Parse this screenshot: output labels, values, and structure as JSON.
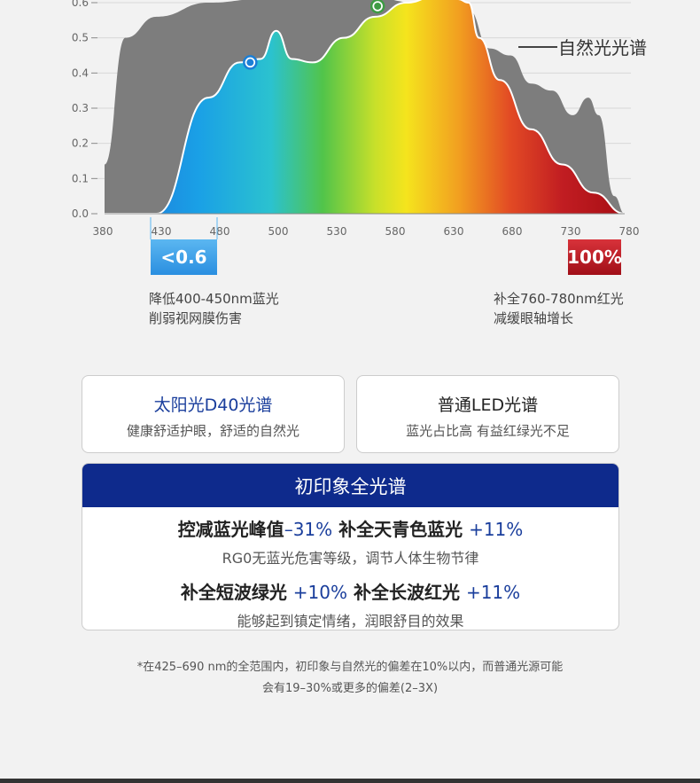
{
  "chart_data": {
    "type": "area",
    "x_ticks": [
      380,
      430,
      480,
      500,
      530,
      580,
      630,
      680,
      730,
      780
    ],
    "y_ticks": [
      "0.0",
      "0.1",
      "0.2",
      "0.3",
      "0.4",
      "0.5",
      "0.6"
    ],
    "ylim": [
      0,
      0.6
    ],
    "series": [
      {
        "name": "自然光光谱",
        "color": "#7d7d7d",
        "points": [
          [
            0,
            0.14
          ],
          [
            0.04,
            0.5
          ],
          [
            0.1,
            0.56
          ],
          [
            0.2,
            0.6
          ],
          [
            0.3,
            0.61
          ],
          [
            0.4,
            0.62
          ],
          [
            0.5,
            0.62
          ],
          [
            0.6,
            0.6
          ],
          [
            0.67,
            0.62
          ],
          [
            0.7,
            0.58
          ],
          [
            0.74,
            0.47
          ],
          [
            0.78,
            0.45
          ],
          [
            0.82,
            0.37
          ],
          [
            0.86,
            0.35
          ],
          [
            0.9,
            0.28
          ],
          [
            0.93,
            0.33
          ],
          [
            0.95,
            0.28
          ],
          [
            0.98,
            0.05
          ],
          [
            1,
            0.0
          ]
        ]
      },
      {
        "name": "初印象全光谱",
        "points": [
          [
            0,
            0.0
          ],
          [
            0.1,
            0.0
          ],
          [
            0.2,
            0.33
          ],
          [
            0.26,
            0.43
          ],
          [
            0.3,
            0.44
          ],
          [
            0.33,
            0.52
          ],
          [
            0.36,
            0.44
          ],
          [
            0.4,
            0.43
          ],
          [
            0.46,
            0.5
          ],
          [
            0.52,
            0.56
          ],
          [
            0.58,
            0.6
          ],
          [
            0.64,
            0.62
          ],
          [
            0.68,
            0.61
          ],
          [
            0.7,
            0.6
          ],
          [
            0.72,
            0.5
          ],
          [
            0.76,
            0.38
          ],
          [
            0.82,
            0.24
          ],
          [
            0.88,
            0.14
          ],
          [
            0.94,
            0.06
          ],
          [
            1,
            0.0
          ]
        ]
      }
    ],
    "markers": [
      {
        "x_frac": 0.28,
        "y": 0.43,
        "color": "#1b7fd6"
      },
      {
        "x_frac": 0.525,
        "y": 0.59,
        "color": "#3e9b44"
      }
    ],
    "series_label": "自然光光谱"
  },
  "badges": {
    "blue": "<0.6",
    "red": "100%"
  },
  "notes": {
    "left_line1": "降低400-450nm蓝光",
    "left_line2": "削弱视网膜伤害",
    "right_line1": "补全760-780nm红光",
    "right_line2": "减缓眼轴增长"
  },
  "cards": {
    "sun_title": "太阳光D40光谱",
    "sun_sub": "健康舒适护眼，舒适的自然光",
    "led_title": "普通LED光谱",
    "led_sub": "蓝光占比高 有益红绿光不足"
  },
  "main": {
    "header": "初印象全光谱",
    "line1_a": "控减蓝光峰值",
    "line1_a_val": "–31%",
    "line1_b": "补全天青色蓝光",
    "line1_b_val": "+11%",
    "sub1": "RG0无蓝光危害等级，调节人体生物节律",
    "line2_a": "补全短波绿光",
    "line2_a_val": "+10%",
    "line2_b": "补全长波红光",
    "line2_b_val": "+11%",
    "sub2": "能够起到镇定情绪，润眼舒目的效果"
  },
  "footnote": {
    "line1": "*在425–690 nm的全范围内，初印象与自然光的偏差在10%以内，而普通光源可能",
    "line2": "会有19–30%或更多的偏差(2–3X)"
  }
}
